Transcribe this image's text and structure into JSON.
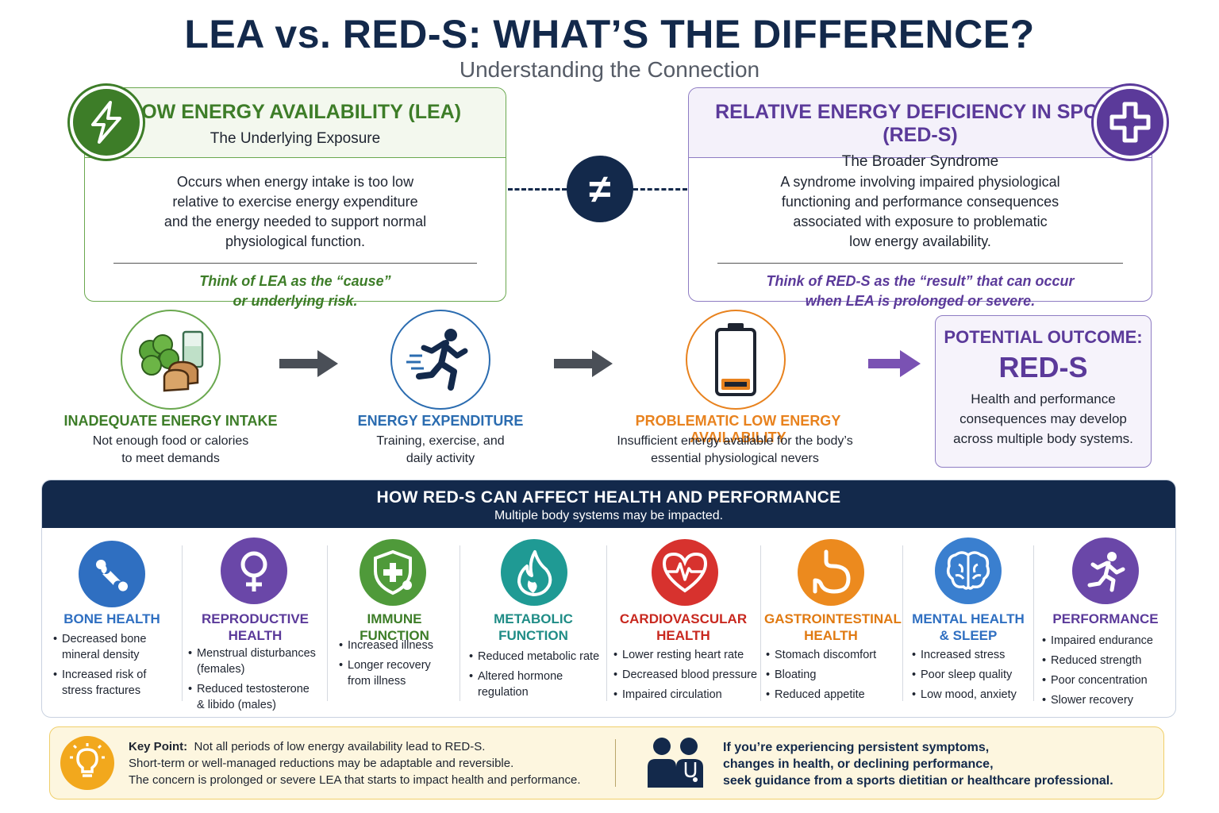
{
  "header": {
    "title": "LEA vs. RED-S: WHAT’S THE DIFFERENCE?",
    "subtitle": "Understanding the Connection"
  },
  "lea_card": {
    "title": "LOW ENERGY AVAILABILITY (LEA)",
    "subtitle": "The Underlying Exposure",
    "body_lines": [
      "Occurs when energy intake is too low",
      "relative to exercise energy expenditure",
      "and the energy needed to support normal",
      "physiological function."
    ],
    "think_lines": [
      "Think of LEA as the “cause”",
      "or underlying risk."
    ],
    "icon": "lightning-icon",
    "color": "#3d7d28"
  },
  "reds_card": {
    "title": "RELATIVE ENERGY DEFICIENCY IN SPORT (RED-S)",
    "subtitle": "The Broader Syndrome",
    "body_lines": [
      "A syndrome involving impaired physiological",
      "functioning and performance consequences",
      "associated with exposure to problematic",
      "low energy availability."
    ],
    "think_lines": [
      "Think of RED-S as the “result” that can occur",
      "when LEA is prolonged or severe."
    ],
    "icon": "medical-cross-icon",
    "color": "#5b3a9a"
  },
  "comparison_symbol": "≠",
  "flow": [
    {
      "label": "INADEQUATE ENERGY INTAKE",
      "desc_lines": [
        "Not enough food or calories",
        "to meet demands"
      ],
      "icon": "food-icon",
      "color": "#3d7d28"
    },
    {
      "label": "ENERGY EXPENDITURE",
      "desc_lines": [
        "Training, exercise, and",
        "daily activity"
      ],
      "icon": "runner-icon",
      "color": "#2b6cb0"
    },
    {
      "label": "PROBLEMATIC LOW ENERGY AVAILABILITY",
      "desc_lines": [
        "Insufficient energy available for the body’s",
        "essential physiological nevers"
      ],
      "icon": "low-battery-icon",
      "color": "#e8821e"
    }
  ],
  "outcome": {
    "label": "POTENTIAL OUTCOME:",
    "value": "RED-S",
    "desc_lines": [
      "Health and performance",
      "consequences may develop",
      "across multiple body systems."
    ]
  },
  "systems": {
    "title": "HOW RED-S CAN AFFECT HEALTH AND PERFORMANCE",
    "subtitle": "Multiple body systems may be impacted.",
    "items": [
      {
        "title_lines": [
          "BONE HEALTH"
        ],
        "color": "#2f6fc1",
        "title_color": "#2f6fc1",
        "icon": "bone-icon",
        "bullets": [
          [
            "Decreased bone",
            "mineral density"
          ],
          [
            "Increased risk of",
            "stress fractures"
          ]
        ]
      },
      {
        "title_lines": [
          "REPRODUCTIVE",
          "HEALTH"
        ],
        "color": "#6a47a8",
        "title_color": "#5b3a9a",
        "icon": "female-symbol-icon",
        "bullets": [
          [
            "Menstrual disturbances",
            "(females)"
          ],
          [
            "Reduced testosterone",
            "& libido (males)"
          ]
        ]
      },
      {
        "title_lines": [
          "IMMUNE FUNCTION"
        ],
        "color": "#4f9a3a",
        "title_color": "#3d7d28",
        "icon": "shield-plus-icon",
        "bullets": [
          [
            "Increased illness"
          ],
          [
            "Longer recovery",
            "from illness"
          ]
        ]
      },
      {
        "title_lines": [
          "METABOLIC",
          "FUNCTION"
        ],
        "color": "#1f9a94",
        "title_color": "#1f8c86",
        "icon": "flame-icon",
        "bullets": [
          [
            "Reduced metabolic rate"
          ],
          [
            "Altered hormone",
            "regulation"
          ]
        ]
      },
      {
        "title_lines": [
          "CARDIOVASCULAR",
          "HEALTH"
        ],
        "color": "#d7322e",
        "title_color": "#c8281f",
        "icon": "heart-pulse-icon",
        "bullets": [
          [
            "Lower resting heart rate"
          ],
          [
            "Decreased blood pressure"
          ],
          [
            "Impaired circulation"
          ]
        ]
      },
      {
        "title_lines": [
          "GASTROINTESTINAL",
          "HEALTH"
        ],
        "color": "#ec8a1e",
        "title_color": "#e07a12",
        "icon": "stomach-icon",
        "bullets": [
          [
            "Stomach discomfort"
          ],
          [
            "Bloating"
          ],
          [
            "Reduced appetite"
          ]
        ]
      },
      {
        "title_lines": [
          "MENTAL HEALTH",
          "& SLEEP"
        ],
        "color": "#3a7fcf",
        "title_color": "#2f6fc1",
        "icon": "brain-icon",
        "bullets": [
          [
            "Increased stress"
          ],
          [
            "Poor sleep quality"
          ],
          [
            "Low mood, anxiety"
          ]
        ]
      },
      {
        "title_lines": [
          "PERFORMANCE"
        ],
        "color": "#6a47a8",
        "title_color": "#5b3a9a",
        "icon": "sprinter-icon",
        "bullets": [
          [
            "Impaired endurance"
          ],
          [
            "Reduced strength"
          ],
          [
            "Poor concentration"
          ],
          [
            "Slower recovery"
          ]
        ]
      }
    ]
  },
  "key_point": {
    "label": "Key Point:",
    "line1": "Not all periods of low energy availability lead to RED-S.",
    "line2": "Short-term or well-managed reductions may be adaptable and reversible.",
    "line3": "The concern is prolonged or severe LEA that starts to impact health and performance.",
    "icon": "lightbulb-icon"
  },
  "guidance": {
    "lines": [
      "If you’re experiencing persistent symptoms,",
      "changes in health, or declining performance,",
      "seek guidance from a sports dietitian or healthcare professional."
    ],
    "icon": "healthcare-professionals-icon"
  }
}
